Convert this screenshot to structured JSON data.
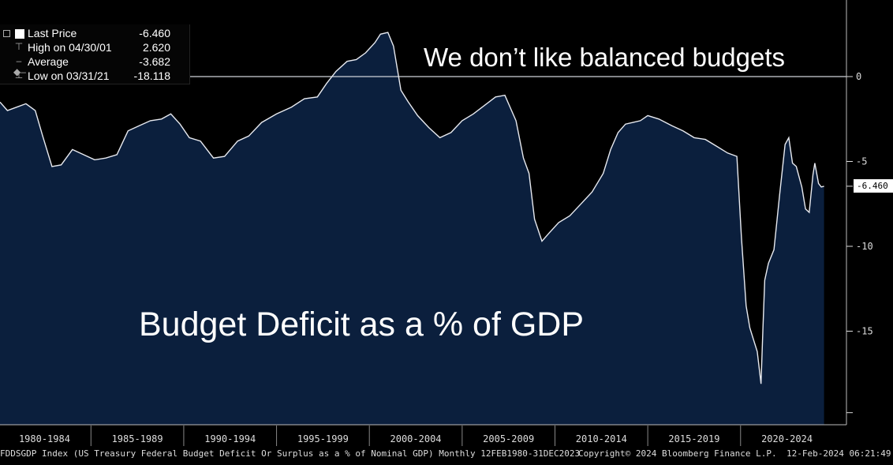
{
  "annotations": {
    "main": "We don’t like balanced budgets",
    "sub": "Budget Deficit as a % of GDP"
  },
  "legend": {
    "rows": [
      {
        "label": "Last Price",
        "value": "-6.460"
      },
      {
        "label": "High on 04/30/01",
        "value": "2.620"
      },
      {
        "label": "Average",
        "value": "-3.682"
      },
      {
        "label": "Low on 03/31/21",
        "value": "-18.118"
      }
    ]
  },
  "last_tag": "-6.460",
  "footer": {
    "index": "FDDSGDP Index (US Treasury Federal Budget Deficit Or Surplus as a % of Nominal GDP)  Monthly 12FEB1980-31DEC2023",
    "copyright": "Copyright© 2024 Bloomberg Finance L.P.",
    "timestamp": "12-Feb-2024 06:21:49"
  },
  "colors": {
    "area_fill": "#0b1f3d",
    "line": "#e8eaf0",
    "background": "#000000"
  },
  "chart_data": {
    "type": "area",
    "title": "",
    "xlabel": "",
    "ylabel": "",
    "ylim": [
      -20,
      4
    ],
    "xlim": [
      1980.1,
      2024.6
    ],
    "yticks": [
      0,
      -5,
      -10,
      -15
    ],
    "ytick_labels": [
      "0",
      "-5",
      "-10",
      "-15"
    ],
    "categories": [
      "1980-1984",
      "1985-1989",
      "1990-1994",
      "1995-1999",
      "2000-2004",
      "2005-2009",
      "2010-2014",
      "2015-2019",
      "2020-2024"
    ],
    "reference_line": 0,
    "x": [
      1980.1,
      1980.5,
      1981.0,
      1981.5,
      1982.0,
      1982.4,
      1982.9,
      1983.4,
      1984.0,
      1984.6,
      1985.2,
      1985.8,
      1986.4,
      1987.0,
      1987.6,
      1988.2,
      1988.8,
      1989.3,
      1989.8,
      1990.3,
      1990.9,
      1991.6,
      1992.2,
      1992.9,
      1993.5,
      1994.2,
      1995.0,
      1995.8,
      1996.5,
      1997.2,
      1997.7,
      1998.2,
      1998.8,
      1999.3,
      1999.8,
      2000.3,
      2000.6,
      2001.0,
      2001.3,
      2001.7,
      2002.1,
      2002.6,
      2003.2,
      2003.8,
      2004.4,
      2005.0,
      2005.6,
      2006.2,
      2006.8,
      2007.3,
      2007.9,
      2008.3,
      2008.6,
      2008.9,
      2009.3,
      2009.7,
      2010.2,
      2010.8,
      2011.4,
      2012.0,
      2012.6,
      2013.0,
      2013.4,
      2013.8,
      2014.2,
      2014.6,
      2015.0,
      2015.6,
      2016.3,
      2016.9,
      2017.5,
      2018.1,
      2018.7,
      2019.3,
      2019.8,
      2020.05,
      2020.3,
      2020.5,
      2020.7,
      2020.9,
      2021.1,
      2021.2,
      2021.3,
      2021.5,
      2021.8,
      2022.1,
      2022.4,
      2022.6,
      2022.8,
      2023.0,
      2023.3,
      2023.5,
      2023.7,
      2023.9,
      2024.0,
      2024.2,
      2024.35,
      2024.5
    ],
    "values": [
      -1.5,
      -2.0,
      -1.8,
      -1.6,
      -2.0,
      -3.5,
      -5.3,
      -5.2,
      -4.3,
      -4.6,
      -4.9,
      -4.8,
      -4.6,
      -3.2,
      -2.9,
      -2.6,
      -2.5,
      -2.2,
      -2.8,
      -3.6,
      -3.8,
      -4.8,
      -4.7,
      -3.8,
      -3.5,
      -2.7,
      -2.2,
      -1.8,
      -1.3,
      -1.2,
      -0.4,
      0.3,
      0.9,
      1.0,
      1.4,
      2.0,
      2.5,
      2.6,
      1.8,
      -0.8,
      -1.5,
      -2.3,
      -3.0,
      -3.6,
      -3.3,
      -2.6,
      -2.2,
      -1.7,
      -1.2,
      -1.1,
      -2.6,
      -4.8,
      -5.7,
      -8.4,
      -9.7,
      -9.2,
      -8.6,
      -8.2,
      -7.5,
      -6.8,
      -5.7,
      -4.3,
      -3.3,
      -2.8,
      -2.7,
      -2.6,
      -2.3,
      -2.5,
      -2.9,
      -3.2,
      -3.6,
      -3.7,
      -4.1,
      -4.5,
      -4.7,
      -9.5,
      -13.5,
      -14.8,
      -15.5,
      -16.2,
      -18.1,
      -15.0,
      -12.0,
      -11.0,
      -10.2,
      -7.0,
      -4.0,
      -3.6,
      -5.1,
      -5.3,
      -6.5,
      -7.8,
      -8.0,
      -5.8,
      -5.1,
      -6.3,
      -6.5,
      -6.46
    ]
  }
}
